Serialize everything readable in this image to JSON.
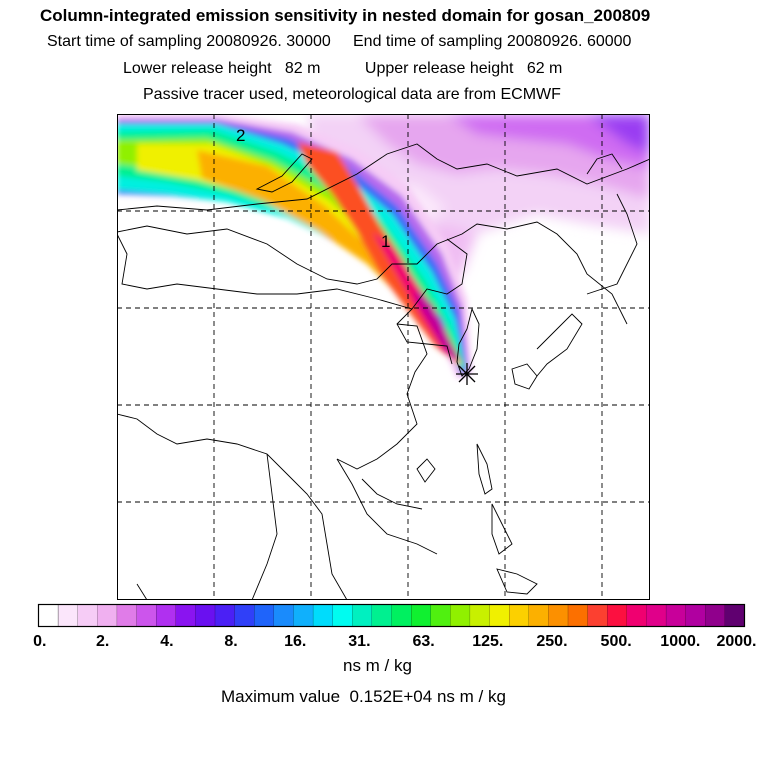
{
  "header": {
    "title": "Column-integrated emission sensitivity in nested domain for gosan_200809",
    "line2_start_label": "Start time of sampling",
    "line2_start_value": "20080926. 30000",
    "line2_end_label": "End time of sampling",
    "line2_end_value": "20080926. 60000",
    "line3_lower_label": "Lower release height",
    "line3_lower_value": "82 m",
    "line3_upper_label": "Upper release height",
    "line3_upper_value": "62 m",
    "line4": "Passive tracer used, meteorological data are from ECMWF"
  },
  "map": {
    "markers": [
      "2",
      "1"
    ],
    "release_marker": "release-site-star"
  },
  "colorbar": {
    "labels": [
      "0.",
      "2.",
      "4.",
      "8.",
      "16.",
      "31.",
      "63.",
      "125.",
      "250.",
      "500.",
      "1000.",
      "2000."
    ],
    "colors": [
      "#ffffff",
      "#fbe6fb",
      "#f6ccf6",
      "#f0b0f0",
      "#e07ce8",
      "#cc55ec",
      "#b030f0",
      "#8a14f0",
      "#6a10f0",
      "#4b20f5",
      "#3040f8",
      "#1f64fa",
      "#1a8bfc",
      "#10b0fc",
      "#00dcfc",
      "#00fcf0",
      "#00f0c0",
      "#00f090",
      "#00f060",
      "#10f030",
      "#50f010",
      "#90f000",
      "#c8f000",
      "#f0f000",
      "#fcd000",
      "#fcb000",
      "#fc9000",
      "#fc7000",
      "#fc4030",
      "#fc1040",
      "#f00070",
      "#e0008a",
      "#c8009a",
      "#b000a0",
      "#90008c",
      "#600070"
    ],
    "units": "ns m / kg"
  },
  "footer": {
    "max_label": "Maximum value",
    "max_value": "0.152E+04",
    "max_units": "ns m / kg"
  }
}
